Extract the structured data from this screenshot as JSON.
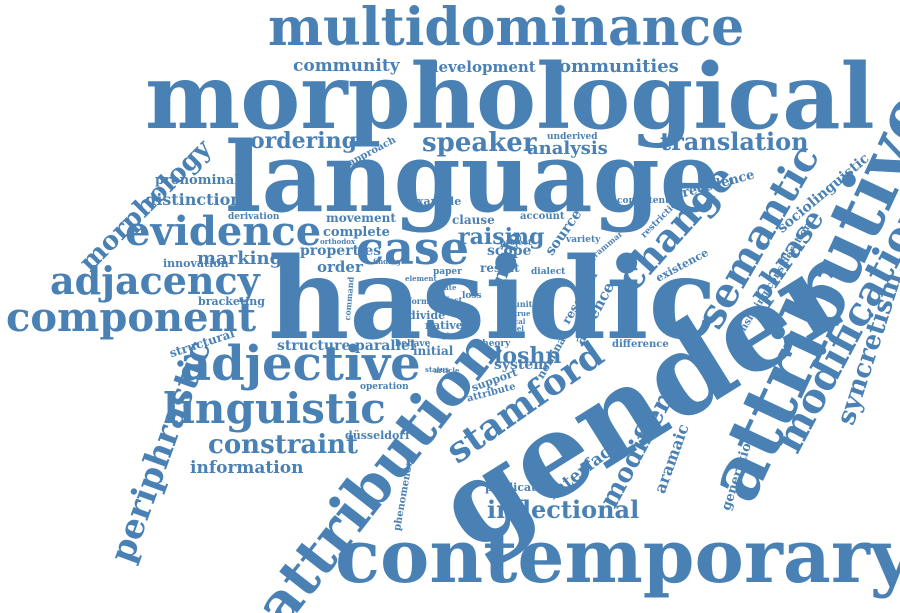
{
  "color": "#4a81b4",
  "background": "#ffffff",
  "words": {
    "multidominance": "multidominance",
    "morphological": "morphological",
    "language": "language",
    "hasidic": "hasidic",
    "gender": "gender",
    "contemporary": "contemporary",
    "attributive": "attributive",
    "attribution": "attribution",
    "community": "community",
    "development": "development",
    "communities": "communities",
    "ordering": "ordering",
    "speaker": "speaker",
    "analysis": "analysis",
    "translation": "translation",
    "approach": "approach",
    "underived": "underived",
    "morphology": "morphology",
    "pronominal": "pronominal",
    "distinction": "distinction",
    "evidence": "evidence",
    "derivation": "derivation",
    "movement": "movement",
    "complete": "complete",
    "example": "example",
    "clause": "clause",
    "account": "account",
    "raising": "raising",
    "case": "case",
    "change": "change",
    "semantic": "semantic",
    "sociolinguistic": "sociolinguistic",
    "precedence": "precedence",
    "consistent": "consistent",
    "restriction": "restriction",
    "phrase": "phrase",
    "translating_consideration": "translating consideration",
    "existence": "existence",
    "adjacency": "adjacency",
    "innovation": "innovation",
    "marking": "marking",
    "properties": "properties",
    "order": "order",
    "node": "node",
    "source": "source",
    "scope": "scope",
    "project": "project",
    "result": "result",
    "dialect": "dialect",
    "component": "component",
    "bracketing": "bracketing",
    "structural": "structural",
    "periphrastic": "periphrastic",
    "adjective": "adjective",
    "structure": "structure",
    "parallel": "parallel",
    "behave": "behave",
    "initial": "initial",
    "loshn": "loshn",
    "system": "system",
    "theory": "theory",
    "native": "native",
    "divide": "divide",
    "difference": "difference",
    "modification": "modification",
    "syncretism": "syncretism",
    "absence": "absence",
    "research": "research",
    "linguistic": "linguistic",
    "operation": "operation",
    "stamford": "stamford",
    "support": "support",
    "attribute": "attribute",
    "nominal": "nominal",
    "constraint": "constraint",
    "dusseldorf": "düsseldorf",
    "information": "information",
    "interface": "interface",
    "modifier": "modifier",
    "aramaic": "aramaic",
    "generation": "generation",
    "predicative": "predicative",
    "phenomenon": "phenomenon",
    "inflectional": "inflectional",
    "effect": "effect",
    "loss": "loss",
    "command": "command",
    "finding": "finding",
    "paper": "paper",
    "orthodox": "orthodox",
    "unite": "unite",
    "true": "true",
    "variety": "variety",
    "state": "state",
    "grammar": "grammar",
    "single": "single",
    "place": "place",
    "article": "article",
    "israel": "israel",
    "lexical": "lexical",
    "status": "status",
    "form": "form",
    "element": "element"
  }
}
